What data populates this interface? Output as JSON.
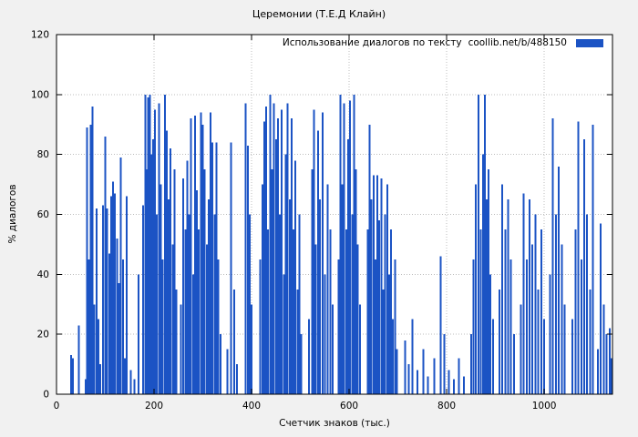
{
  "title": "Церемонии (Т.Е.Д Клайн)",
  "legend": {
    "label": "Использование диалогов по тексту",
    "source": "coollib.net/b/488150"
  },
  "axes": {
    "ylabel": "% диалогов",
    "xlabel": "Счетчик знаков (тыс.)"
  },
  "colors": {
    "bar": "#1b53c4",
    "background": "#f1f1f1",
    "plot_background": "#ffffff",
    "frame": "#000000",
    "grid": "#bcbcbc"
  },
  "chart_data": {
    "type": "bar",
    "title": "Церемонии (Т.Е.Д Клайн)",
    "xlabel": "Счетчик знаков (тыс.)",
    "ylabel": "% диалогов",
    "legend": "Использование диалогов по тексту  coollib.net/b/488150",
    "legend_position": "top-right-inside",
    "grid": true,
    "xlim": [
      0,
      1140
    ],
    "ylim": [
      0,
      120
    ],
    "xticks": [
      0,
      200,
      400,
      600,
      800,
      1000
    ],
    "yticks": [
      0,
      20,
      40,
      60,
      80,
      100,
      120
    ],
    "points": [
      [
        30,
        13
      ],
      [
        34,
        12
      ],
      [
        46,
        23
      ],
      [
        60,
        5
      ],
      [
        63,
        89
      ],
      [
        66,
        45
      ],
      [
        70,
        90
      ],
      [
        74,
        96
      ],
      [
        78,
        30
      ],
      [
        82,
        62
      ],
      [
        86,
        25
      ],
      [
        90,
        10
      ],
      [
        95,
        63
      ],
      [
        100,
        86
      ],
      [
        104,
        62
      ],
      [
        108,
        47
      ],
      [
        112,
        66
      ],
      [
        116,
        71
      ],
      [
        120,
        67
      ],
      [
        124,
        52
      ],
      [
        128,
        37
      ],
      [
        132,
        79
      ],
      [
        136,
        45
      ],
      [
        140,
        12
      ],
      [
        144,
        66
      ],
      [
        152,
        8
      ],
      [
        160,
        5
      ],
      [
        168,
        40
      ],
      [
        178,
        63
      ],
      [
        182,
        100
      ],
      [
        186,
        75
      ],
      [
        188,
        99
      ],
      [
        192,
        100
      ],
      [
        194,
        80
      ],
      [
        198,
        85
      ],
      [
        202,
        95
      ],
      [
        206,
        60
      ],
      [
        210,
        97
      ],
      [
        214,
        70
      ],
      [
        218,
        45
      ],
      [
        222,
        100
      ],
      [
        226,
        88
      ],
      [
        230,
        65
      ],
      [
        234,
        82
      ],
      [
        238,
        50
      ],
      [
        242,
        75
      ],
      [
        246,
        35
      ],
      [
        255,
        30
      ],
      [
        260,
        72
      ],
      [
        264,
        55
      ],
      [
        268,
        78
      ],
      [
        272,
        60
      ],
      [
        276,
        92
      ],
      [
        280,
        40
      ],
      [
        284,
        93
      ],
      [
        288,
        68
      ],
      [
        292,
        55
      ],
      [
        296,
        94
      ],
      [
        300,
        90
      ],
      [
        304,
        75
      ],
      [
        308,
        50
      ],
      [
        312,
        65
      ],
      [
        316,
        94
      ],
      [
        320,
        84
      ],
      [
        324,
        60
      ],
      [
        328,
        84
      ],
      [
        332,
        45
      ],
      [
        336,
        20
      ],
      [
        350,
        15
      ],
      [
        358,
        84
      ],
      [
        364,
        35
      ],
      [
        370,
        10
      ],
      [
        388,
        97
      ],
      [
        392,
        83
      ],
      [
        396,
        60
      ],
      [
        400,
        30
      ],
      [
        418,
        45
      ],
      [
        422,
        70
      ],
      [
        426,
        91
      ],
      [
        430,
        96
      ],
      [
        434,
        55
      ],
      [
        438,
        100
      ],
      [
        442,
        75
      ],
      [
        446,
        97
      ],
      [
        450,
        85
      ],
      [
        454,
        92
      ],
      [
        458,
        60
      ],
      [
        462,
        95
      ],
      [
        466,
        40
      ],
      [
        470,
        80
      ],
      [
        474,
        97
      ],
      [
        478,
        65
      ],
      [
        482,
        92
      ],
      [
        486,
        55
      ],
      [
        490,
        78
      ],
      [
        494,
        35
      ],
      [
        498,
        60
      ],
      [
        502,
        20
      ],
      [
        518,
        25
      ],
      [
        524,
        75
      ],
      [
        528,
        95
      ],
      [
        532,
        50
      ],
      [
        536,
        88
      ],
      [
        540,
        65
      ],
      [
        546,
        94
      ],
      [
        550,
        40
      ],
      [
        556,
        70
      ],
      [
        562,
        55
      ],
      [
        566,
        30
      ],
      [
        578,
        45
      ],
      [
        582,
        100
      ],
      [
        586,
        70
      ],
      [
        590,
        97
      ],
      [
        594,
        55
      ],
      [
        598,
        85
      ],
      [
        602,
        98
      ],
      [
        606,
        60
      ],
      [
        610,
        100
      ],
      [
        614,
        75
      ],
      [
        618,
        50
      ],
      [
        622,
        30
      ],
      [
        638,
        55
      ],
      [
        642,
        90
      ],
      [
        646,
        65
      ],
      [
        650,
        73
      ],
      [
        654,
        45
      ],
      [
        658,
        73
      ],
      [
        662,
        58
      ],
      [
        666,
        72
      ],
      [
        670,
        35
      ],
      [
        674,
        60
      ],
      [
        678,
        70
      ],
      [
        682,
        40
      ],
      [
        686,
        55
      ],
      [
        690,
        25
      ],
      [
        694,
        45
      ],
      [
        698,
        15
      ],
      [
        715,
        18
      ],
      [
        722,
        10
      ],
      [
        730,
        25
      ],
      [
        740,
        8
      ],
      [
        752,
        15
      ],
      [
        762,
        6
      ],
      [
        775,
        12
      ],
      [
        788,
        46
      ],
      [
        795,
        20
      ],
      [
        805,
        8
      ],
      [
        815,
        5
      ],
      [
        825,
        12
      ],
      [
        835,
        6
      ],
      [
        850,
        20
      ],
      [
        855,
        45
      ],
      [
        860,
        70
      ],
      [
        865,
        100
      ],
      [
        870,
        55
      ],
      [
        875,
        80
      ],
      [
        878,
        100
      ],
      [
        882,
        65
      ],
      [
        886,
        75
      ],
      [
        890,
        40
      ],
      [
        895,
        25
      ],
      [
        908,
        35
      ],
      [
        914,
        70
      ],
      [
        920,
        55
      ],
      [
        926,
        65
      ],
      [
        932,
        45
      ],
      [
        938,
        20
      ],
      [
        952,
        30
      ],
      [
        958,
        67
      ],
      [
        964,
        45
      ],
      [
        970,
        65
      ],
      [
        976,
        50
      ],
      [
        982,
        60
      ],
      [
        988,
        35
      ],
      [
        994,
        55
      ],
      [
        1000,
        25
      ],
      [
        1012,
        40
      ],
      [
        1018,
        92
      ],
      [
        1024,
        60
      ],
      [
        1030,
        76
      ],
      [
        1036,
        50
      ],
      [
        1042,
        30
      ],
      [
        1058,
        25
      ],
      [
        1064,
        55
      ],
      [
        1070,
        91
      ],
      [
        1076,
        45
      ],
      [
        1082,
        85
      ],
      [
        1088,
        60
      ],
      [
        1094,
        35
      ],
      [
        1100,
        90
      ],
      [
        1110,
        15
      ],
      [
        1116,
        57
      ],
      [
        1122,
        30
      ],
      [
        1128,
        20
      ],
      [
        1134,
        22
      ],
      [
        1138,
        12
      ]
    ]
  }
}
